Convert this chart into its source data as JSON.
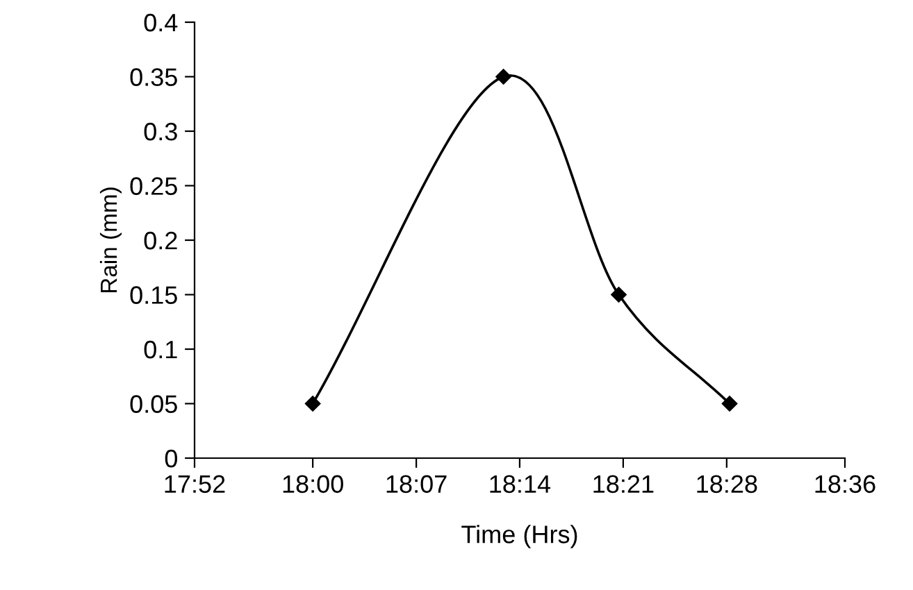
{
  "chart_data": {
    "type": "line",
    "xlabel": "Time (Hrs)",
    "ylabel": "Rain (mm)",
    "x": [
      18.0,
      18.215,
      18.345,
      18.47
    ],
    "series": [
      {
        "color": "#000000",
        "values": [
          0.05,
          0.35,
          0.15,
          0.05
        ]
      }
    ],
    "xlim": [
      17.8667,
      18.6
    ],
    "xticks": [
      {
        "value": 17.8667,
        "label": "17:52"
      },
      {
        "value": 18.0,
        "label": "18:00"
      },
      {
        "value": 18.1167,
        "label": "18:07"
      },
      {
        "value": 18.2333,
        "label": "18:14"
      },
      {
        "value": 18.35,
        "label": "18:21"
      },
      {
        "value": 18.4667,
        "label": "18:28"
      },
      {
        "value": 18.6,
        "label": "18:36"
      }
    ],
    "ylim": [
      0,
      0.4
    ],
    "yticks": [
      0,
      0.05,
      0.1,
      0.15,
      0.2,
      0.25,
      0.3,
      0.35,
      0.4
    ],
    "grid": false,
    "legend": false,
    "marker": "diamond",
    "line_style": "solid"
  }
}
